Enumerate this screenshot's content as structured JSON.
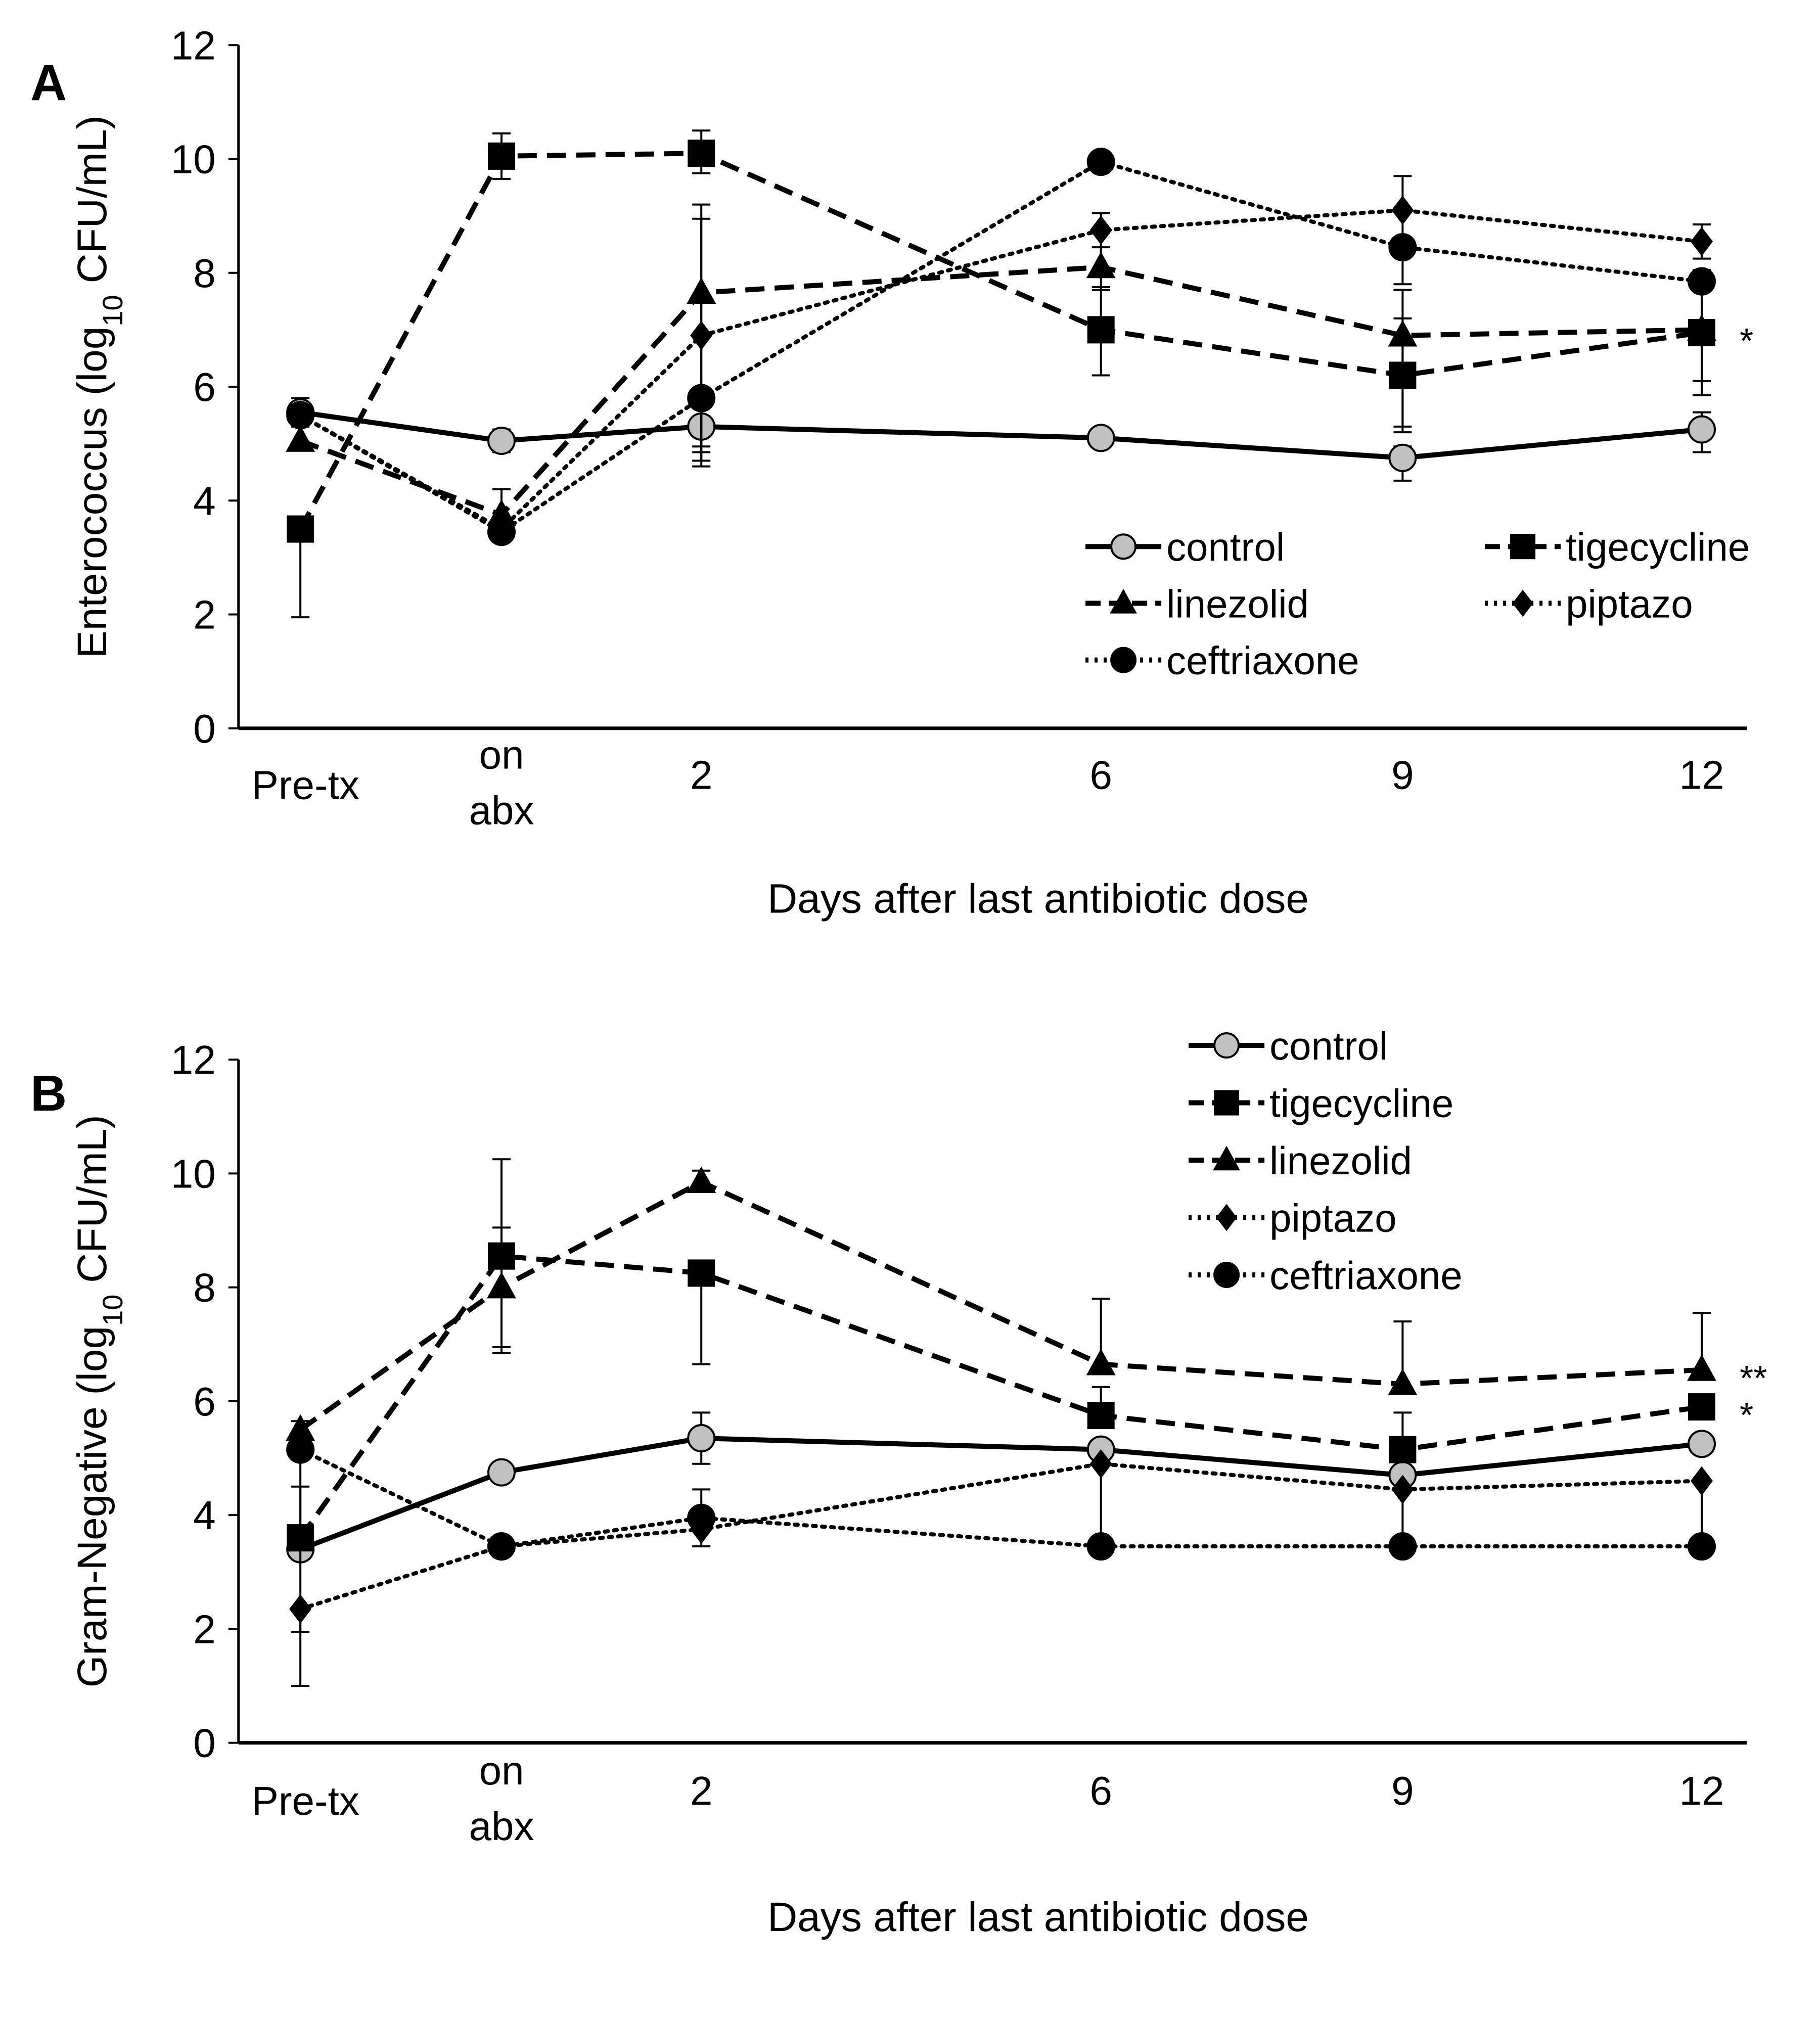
{
  "chart_data": [
    {
      "type": "line",
      "panel_label": "A",
      "title": "",
      "xlabel": "Days after last antibiotic dose",
      "ylabel": "Enterococcus (log10 CFU/mL)",
      "ylabel_parts": {
        "pre": "Enterococcus (log",
        "sub": "10",
        "post": " CFU/mL)"
      },
      "ylim": [
        0,
        12
      ],
      "yticks": [
        0,
        2,
        4,
        6,
        8,
        10,
        12
      ],
      "categories": [
        "Pre-tx",
        "on abx",
        "2",
        "6",
        "9",
        "12"
      ],
      "category_lines": [
        [
          "Pre-tx"
        ],
        [
          "on",
          "abx"
        ],
        [
          "2"
        ],
        [
          "6"
        ],
        [
          "9"
        ],
        [
          "12"
        ]
      ],
      "x_positions": [
        -3.5,
        -1.5,
        2,
        6,
        9,
        12
      ],
      "grid": false,
      "legend": {
        "placement": "bottom-right",
        "columns": 2
      },
      "series": [
        {
          "name": "control",
          "marker": "circle",
          "fill": "#c0c0c0",
          "line": "solid",
          "values": [
            5.55,
            5.05,
            5.3,
            5.1,
            4.75,
            5.25
          ],
          "err_up": [
            0.25,
            0.2,
            0.45,
            0,
            0.2,
            0.3
          ],
          "err_down": [
            0.25,
            0.2,
            0.45,
            0,
            0.4,
            0.4
          ]
        },
        {
          "name": "tigecycline",
          "marker": "square",
          "fill": "#000000",
          "line": "dashed",
          "values": [
            3.5,
            10.05,
            10.1,
            7.0,
            6.2,
            6.95
          ],
          "err_up": [
            0,
            0.4,
            0.4,
            0.75,
            1.0,
            1.1
          ],
          "err_down": [
            1.55,
            0.4,
            0.35,
            0.8,
            1.0,
            1.1
          ]
        },
        {
          "name": "linezolid",
          "marker": "triangle",
          "fill": "#000000",
          "line": "dashed",
          "values": [
            5.05,
            3.75,
            7.65,
            8.1,
            6.9,
            7.0
          ],
          "err_up": [
            0,
            0.45,
            1.3,
            0.6,
            0.8,
            0.9
          ],
          "err_down": [
            0,
            0.4,
            2.7,
            0.4,
            1.6,
            0.9
          ]
        },
        {
          "name": "piptazo",
          "marker": "diamond",
          "fill": "#000000",
          "line": "dotted",
          "values": [
            5.5,
            3.5,
            6.9,
            8.75,
            9.1,
            8.55
          ],
          "err_up": [
            0,
            0,
            2.3,
            0.3,
            0.6,
            0.3
          ],
          "err_down": [
            0,
            0,
            2.2,
            0.3,
            1.3,
            0.3
          ]
        },
        {
          "name": "ceftriaxone",
          "marker": "circle",
          "fill": "#000000",
          "line": "dotted",
          "values": [
            5.5,
            3.45,
            5.8,
            9.95,
            8.45,
            7.85
          ],
          "err_up": [
            0,
            0,
            0,
            0,
            0,
            0.15
          ],
          "err_down": [
            0,
            0,
            1.2,
            0,
            0,
            1.1
          ]
        }
      ],
      "annotations": [
        {
          "text": "*",
          "series": "tigecycline",
          "x": "12"
        }
      ]
    },
    {
      "type": "line",
      "panel_label": "B",
      "title": "",
      "xlabel": "Days after last antibiotic dose",
      "ylabel": "Gram-Negative (log10 CFU/mL)",
      "ylabel_parts": {
        "pre": "Gram-Negative  (log",
        "sub": "10",
        "post": " CFU/mL)"
      },
      "ylim": [
        0,
        12
      ],
      "yticks": [
        0,
        2,
        4,
        6,
        8,
        10,
        12
      ],
      "categories": [
        "Pre-tx",
        "on abx",
        "2",
        "6",
        "9",
        "12"
      ],
      "category_lines": [
        [
          "Pre-tx"
        ],
        [
          "on",
          "abx"
        ],
        [
          "2"
        ],
        [
          "6"
        ],
        [
          "9"
        ],
        [
          "12"
        ]
      ],
      "x_positions": [
        -3.5,
        -1.5,
        2,
        6,
        9,
        12
      ],
      "grid": false,
      "legend": {
        "placement": "top-right",
        "columns": 1
      },
      "series": [
        {
          "name": "control",
          "marker": "circle",
          "fill": "#c0c0c0",
          "line": "solid",
          "values": [
            3.4,
            4.75,
            5.35,
            5.15,
            4.7,
            5.25
          ],
          "err_up": [
            0,
            0.15,
            0.45,
            0,
            0,
            0
          ],
          "err_down": [
            0,
            0.15,
            0.45,
            0,
            0,
            0
          ]
        },
        {
          "name": "tigecycline",
          "marker": "square",
          "fill": "#000000",
          "line": "dashed",
          "values": [
            3.6,
            8.55,
            8.25,
            5.75,
            5.15,
            5.9
          ],
          "err_up": [
            0.9,
            0.5,
            0,
            0.5,
            0.65,
            0
          ],
          "err_down": [
            0,
            1.6,
            1.6,
            0,
            0,
            0
          ]
        },
        {
          "name": "linezolid",
          "marker": "triangle",
          "fill": "#000000",
          "line": "dashed",
          "values": [
            5.5,
            8.0,
            9.85,
            6.65,
            6.3,
            6.55
          ],
          "err_up": [
            0.15,
            2.25,
            0.2,
            1.15,
            1.1,
            1.0
          ],
          "err_down": [
            0,
            1.15,
            0,
            0,
            0,
            0
          ]
        },
        {
          "name": "piptazo",
          "marker": "diamond",
          "fill": "#000000",
          "line": "dotted",
          "values": [
            2.35,
            3.45,
            3.75,
            4.9,
            4.45,
            4.6
          ],
          "err_up": [
            0,
            0,
            0,
            0,
            0,
            0
          ],
          "err_down": [
            1.35,
            0,
            0.3,
            1.5,
            1.0,
            1.1
          ]
        },
        {
          "name": "ceftriaxone",
          "marker": "circle",
          "fill": "#000000",
          "line": "dotted",
          "values": [
            5.15,
            3.45,
            3.95,
            3.45,
            3.45,
            3.45
          ],
          "err_up": [
            0,
            0,
            0.5,
            0,
            0,
            0
          ],
          "err_down": [
            3.2,
            0,
            0,
            0,
            0,
            0
          ]
        }
      ],
      "annotations": [
        {
          "text": "**",
          "series": "linezolid",
          "x": "12"
        },
        {
          "text": "*",
          "series": "tigecycline",
          "x": "12"
        }
      ]
    }
  ]
}
